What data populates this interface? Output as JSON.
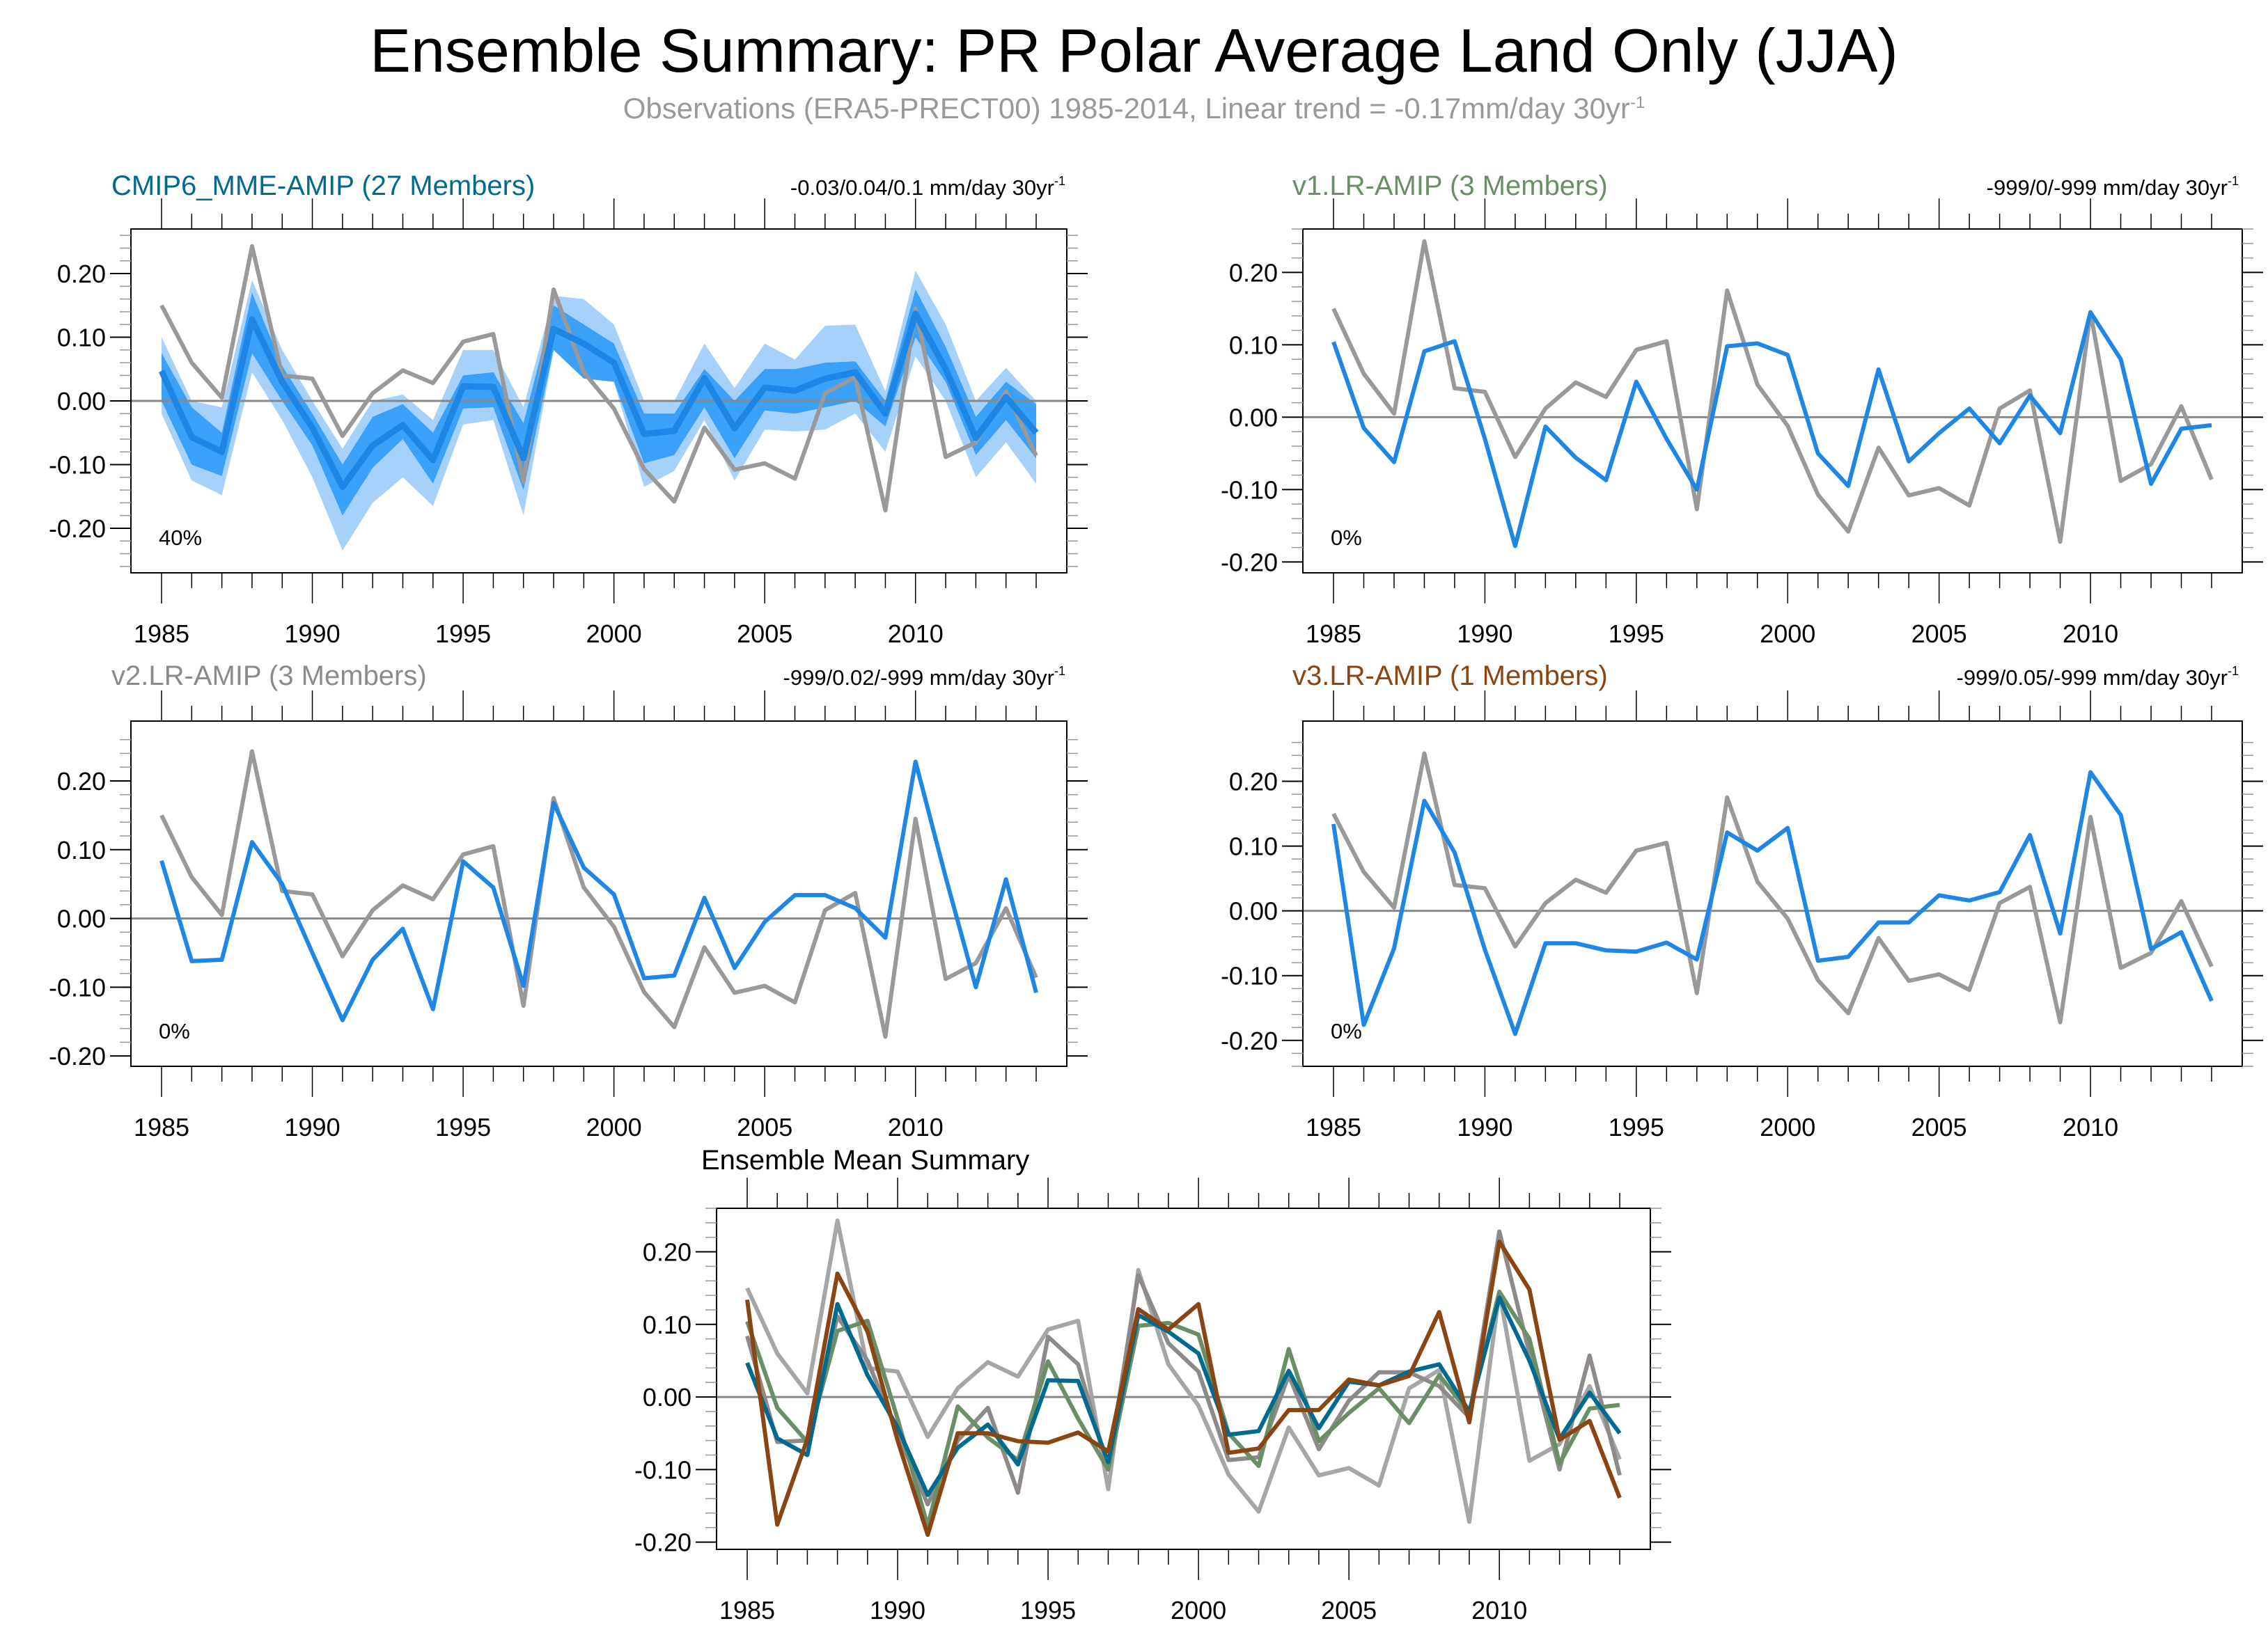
{
  "title": "Ensemble Summary: PR Polar Average Land Only (JJA)",
  "subtitle": "Observations (ERA5-PRECT00) 1985-2014, Linear trend = -0.17mm/day 30yr",
  "subtitle_sup": "-1",
  "chart_data": [
    {
      "type": "line",
      "title": "CMIP6_MME-AMIP (27 Members)",
      "title_color": "#006b8f",
      "trend_label": "-0.03/0.04/0.1 mm/day 30yr",
      "trend_sup": "-1",
      "percent_label": "40%",
      "x": [
        1985,
        1986,
        1987,
        1988,
        1989,
        1990,
        1991,
        1992,
        1993,
        1994,
        1995,
        1996,
        1997,
        1998,
        1999,
        2000,
        2001,
        2002,
        2003,
        2004,
        2005,
        2006,
        2007,
        2008,
        2009,
        2010,
        2011,
        2012,
        2013,
        2014
      ],
      "xticks": [
        1985,
        1990,
        1995,
        2000,
        2005,
        2010
      ],
      "yticks": [
        -0.2,
        -0.1,
        0.0,
        0.1,
        0.2
      ],
      "ytick_labels": [
        "-0.20",
        "-0.10",
        "0.00",
        "0.10",
        "0.20"
      ],
      "ylim": [
        -0.27,
        0.27
      ],
      "series": [
        {
          "name": "10-90% range",
          "kind": "band",
          "color": "#a6d1fb",
          "lower": [
            -0.02,
            -0.125,
            -0.148,
            0.045,
            -0.03,
            -0.12,
            -0.235,
            -0.16,
            -0.12,
            -0.165,
            -0.037,
            -0.03,
            -0.18,
            0.08,
            0.04,
            0.03,
            -0.135,
            -0.11,
            -0.03,
            -0.125,
            -0.045,
            -0.048,
            -0.045,
            -0.02,
            -0.08,
            0.07,
            0.0,
            -0.12,
            -0.065,
            -0.13
          ],
          "upper": [
            0.1,
            0.0,
            -0.01,
            0.19,
            0.08,
            0.0,
            -0.075,
            0.0,
            0.01,
            -0.03,
            0.08,
            0.08,
            -0.01,
            0.165,
            0.16,
            0.12,
            0.0,
            0.0,
            0.09,
            0.02,
            0.09,
            0.065,
            0.118,
            0.12,
            0.015,
            0.205,
            0.12,
            0.0,
            0.052,
            0.0
          ]
        },
        {
          "name": "25-75% range",
          "kind": "band",
          "color": "#3ba0f7",
          "lower": [
            0.0,
            -0.1,
            -0.118,
            0.075,
            0.0,
            -0.07,
            -0.18,
            -0.105,
            -0.06,
            -0.13,
            -0.012,
            -0.01,
            -0.14,
            0.08,
            0.035,
            0.03,
            -0.098,
            -0.085,
            -0.01,
            -0.09,
            -0.015,
            -0.02,
            -0.01,
            0.0,
            -0.04,
            0.1,
            0.03,
            -0.085,
            -0.03,
            -0.09
          ],
          "upper": [
            0.075,
            -0.01,
            -0.05,
            0.17,
            0.055,
            -0.02,
            -0.1,
            -0.025,
            -0.005,
            -0.05,
            0.04,
            0.045,
            -0.035,
            0.15,
            0.12,
            0.09,
            -0.02,
            -0.02,
            0.05,
            0.0,
            0.05,
            0.05,
            0.06,
            0.062,
            0.0,
            0.175,
            0.085,
            -0.025,
            0.03,
            -0.005
          ]
        },
        {
          "name": "Ensemble mean",
          "kind": "line",
          "color": "#1e87e5",
          "width": 9,
          "values": [
            0.047,
            -0.057,
            -0.08,
            0.128,
            0.03,
            -0.042,
            -0.135,
            -0.07,
            -0.038,
            -0.093,
            0.023,
            0.022,
            -0.09,
            0.113,
            0.09,
            0.06,
            -0.052,
            -0.047,
            0.036,
            -0.043,
            0.021,
            0.016,
            0.035,
            0.045,
            -0.02,
            0.137,
            0.05,
            -0.058,
            0.006,
            -0.05
          ]
        },
        {
          "name": "Observations",
          "kind": "line",
          "color": "#999999",
          "width": 6,
          "values": [
            0.15,
            0.06,
            0.005,
            0.243,
            0.04,
            0.035,
            -0.055,
            0.012,
            0.048,
            0.028,
            0.093,
            0.105,
            -0.127,
            0.175,
            0.045,
            -0.012,
            -0.107,
            -0.158,
            -0.042,
            -0.108,
            -0.098,
            -0.122,
            0.012,
            0.037,
            -0.172,
            0.145,
            -0.088,
            -0.065,
            0.015,
            -0.086
          ]
        }
      ]
    },
    {
      "type": "line",
      "title": "v1.LR-AMIP (3 Members)",
      "title_color": "#6a8f66",
      "trend_label": "-999/0/-999 mm/day 30yr",
      "trend_sup": "-1",
      "percent_label": "0%",
      "x": [
        1985,
        1986,
        1987,
        1988,
        1989,
        1990,
        1991,
        1992,
        1993,
        1994,
        1995,
        1996,
        1997,
        1998,
        1999,
        2000,
        2001,
        2002,
        2003,
        2004,
        2005,
        2006,
        2007,
        2008,
        2009,
        2010,
        2011,
        2012,
        2013,
        2014
      ],
      "xticks": [
        1985,
        1990,
        1995,
        2000,
        2005,
        2010
      ],
      "yticks": [
        -0.2,
        -0.1,
        0.0,
        0.1,
        0.2
      ],
      "ytick_labels": [
        "-0.20",
        "-0.10",
        "0.00",
        "0.10",
        "0.20"
      ],
      "ylim": [
        -0.215,
        0.26
      ],
      "series": [
        {
          "name": "Ensemble mean",
          "kind": "line",
          "color": "#1e87e5",
          "width": 6,
          "values": [
            0.104,
            -0.015,
            -0.062,
            0.091,
            0.105,
            -0.03,
            -0.178,
            -0.013,
            -0.056,
            -0.087,
            0.049,
            -0.03,
            -0.1,
            0.098,
            0.102,
            0.086,
            -0.05,
            -0.095,
            0.066,
            -0.061,
            -0.022,
            0.012,
            -0.036,
            0.03,
            -0.022,
            0.145,
            0.08,
            -0.092,
            -0.016,
            -0.011
          ]
        },
        {
          "name": "Observations",
          "kind": "line",
          "color": "#999999",
          "width": 6,
          "values": [
            0.15,
            0.06,
            0.005,
            0.243,
            0.04,
            0.035,
            -0.055,
            0.012,
            0.048,
            0.028,
            0.093,
            0.105,
            -0.127,
            0.175,
            0.045,
            -0.012,
            -0.107,
            -0.158,
            -0.042,
            -0.108,
            -0.098,
            -0.122,
            0.012,
            0.037,
            -0.172,
            0.145,
            -0.088,
            -0.065,
            0.015,
            -0.086
          ]
        }
      ]
    },
    {
      "type": "line",
      "title": "v2.LR-AMIP (3 Members)",
      "title_color": "#8f8a8a",
      "trend_label": "-999/0.02/-999 mm/day 30yr",
      "trend_sup": "-1",
      "percent_label": "0%",
      "x": [
        1985,
        1986,
        1987,
        1988,
        1989,
        1990,
        1991,
        1992,
        1993,
        1994,
        1995,
        1996,
        1997,
        1998,
        1999,
        2000,
        2001,
        2002,
        2003,
        2004,
        2005,
        2006,
        2007,
        2008,
        2009,
        2010,
        2011,
        2012,
        2013,
        2014
      ],
      "xticks": [
        1985,
        1990,
        1995,
        2000,
        2005,
        2010
      ],
      "yticks": [
        -0.2,
        -0.1,
        0.0,
        0.1,
        0.2
      ],
      "ytick_labels": [
        "-0.20",
        "-0.10",
        "0.00",
        "0.10",
        "0.20"
      ],
      "ylim": [
        -0.215,
        0.287
      ],
      "series": [
        {
          "name": "Ensemble mean",
          "kind": "line",
          "color": "#1e87e5",
          "width": 6,
          "values": [
            0.084,
            -0.062,
            -0.06,
            0.111,
            0.05,
            -0.05,
            -0.148,
            -0.06,
            -0.015,
            -0.132,
            0.083,
            0.045,
            -0.098,
            0.168,
            0.074,
            0.035,
            -0.087,
            -0.083,
            0.03,
            -0.072,
            -0.005,
            0.034,
            0.034,
            0.015,
            -0.028,
            0.228,
            0.06,
            -0.1,
            0.057,
            -0.108
          ]
        },
        {
          "name": "Observations",
          "kind": "line",
          "color": "#999999",
          "width": 6,
          "values": [
            0.15,
            0.06,
            0.005,
            0.243,
            0.04,
            0.035,
            -0.055,
            0.012,
            0.048,
            0.028,
            0.093,
            0.105,
            -0.127,
            0.175,
            0.045,
            -0.012,
            -0.107,
            -0.158,
            -0.042,
            -0.108,
            -0.098,
            -0.122,
            0.012,
            0.037,
            -0.172,
            0.145,
            -0.088,
            -0.065,
            0.015,
            -0.086
          ]
        }
      ]
    },
    {
      "type": "line",
      "title": "v3.LR-AMIP (1 Members)",
      "title_color": "#8b4513",
      "trend_label": "-999/0.05/-999 mm/day 30yr",
      "trend_sup": "-1",
      "percent_label": "0%",
      "x": [
        1985,
        1986,
        1987,
        1988,
        1989,
        1990,
        1991,
        1992,
        1993,
        1994,
        1995,
        1996,
        1997,
        1998,
        1999,
        2000,
        2001,
        2002,
        2003,
        2004,
        2005,
        2006,
        2007,
        2008,
        2009,
        2010,
        2011,
        2012,
        2013,
        2014
      ],
      "xticks": [
        1985,
        1990,
        1995,
        2000,
        2005,
        2010
      ],
      "yticks": [
        -0.2,
        -0.1,
        0.0,
        0.1,
        0.2
      ],
      "ytick_labels": [
        "-0.20",
        "-0.10",
        "0.00",
        "0.10",
        "0.20"
      ],
      "ylim": [
        -0.24,
        0.293
      ],
      "series": [
        {
          "name": "Ensemble mean",
          "kind": "line",
          "color": "#1e87e5",
          "width": 6,
          "values": [
            0.134,
            -0.176,
            -0.058,
            0.17,
            0.09,
            -0.06,
            -0.19,
            -0.05,
            -0.05,
            -0.061,
            -0.063,
            -0.049,
            -0.075,
            0.121,
            0.093,
            0.128,
            -0.077,
            -0.071,
            -0.018,
            -0.018,
            0.024,
            0.016,
            0.029,
            0.117,
            -0.035,
            0.214,
            0.148,
            -0.059,
            -0.033,
            -0.139
          ]
        },
        {
          "name": "Observations",
          "kind": "line",
          "color": "#999999",
          "width": 6,
          "values": [
            0.15,
            0.06,
            0.005,
            0.243,
            0.04,
            0.035,
            -0.055,
            0.012,
            0.048,
            0.028,
            0.093,
            0.105,
            -0.127,
            0.175,
            0.045,
            -0.012,
            -0.107,
            -0.158,
            -0.042,
            -0.108,
            -0.098,
            -0.122,
            0.012,
            0.037,
            -0.172,
            0.145,
            -0.088,
            -0.065,
            0.015,
            -0.086
          ]
        }
      ]
    },
    {
      "type": "line",
      "title": "Ensemble Mean Summary",
      "title_color": "#000000",
      "trend_label": "",
      "trend_sup": "",
      "percent_label": "",
      "x": [
        1985,
        1986,
        1987,
        1988,
        1989,
        1990,
        1991,
        1992,
        1993,
        1994,
        1995,
        1996,
        1997,
        1998,
        1999,
        2000,
        2001,
        2002,
        2003,
        2004,
        2005,
        2006,
        2007,
        2008,
        2009,
        2010,
        2011,
        2012,
        2013,
        2014
      ],
      "xticks": [
        1985,
        1990,
        1995,
        2000,
        2005,
        2010
      ],
      "yticks": [
        -0.2,
        -0.1,
        0.0,
        0.1,
        0.2
      ],
      "ytick_labels": [
        "-0.20",
        "-0.10",
        "0.00",
        "0.10",
        "0.20"
      ],
      "ylim": [
        -0.21,
        0.26
      ],
      "series": [
        {
          "name": "Observations",
          "kind": "line",
          "color": "#a6a6a6",
          "width": 6,
          "values": [
            0.15,
            0.06,
            0.005,
            0.243,
            0.04,
            0.035,
            -0.055,
            0.012,
            0.048,
            0.028,
            0.093,
            0.105,
            -0.127,
            0.175,
            0.045,
            -0.012,
            -0.107,
            -0.158,
            -0.042,
            -0.108,
            -0.098,
            -0.122,
            0.012,
            0.037,
            -0.172,
            0.145,
            -0.088,
            -0.065,
            0.015,
            -0.086
          ]
        },
        {
          "name": "v2.LR-AMIP",
          "kind": "line",
          "color": "#8f8a8a",
          "width": 6,
          "values": [
            0.084,
            -0.062,
            -0.06,
            0.111,
            0.05,
            -0.05,
            -0.148,
            -0.06,
            -0.015,
            -0.132,
            0.083,
            0.045,
            -0.098,
            0.168,
            0.074,
            0.035,
            -0.087,
            -0.083,
            0.03,
            -0.072,
            -0.005,
            0.034,
            0.034,
            0.015,
            -0.028,
            0.228,
            0.06,
            -0.1,
            0.057,
            -0.108
          ]
        },
        {
          "name": "v1.LR-AMIP",
          "kind": "line",
          "color": "#6a8f66",
          "width": 6,
          "values": [
            0.104,
            -0.015,
            -0.062,
            0.091,
            0.105,
            -0.03,
            -0.178,
            -0.013,
            -0.056,
            -0.087,
            0.049,
            -0.03,
            -0.1,
            0.098,
            0.102,
            0.086,
            -0.05,
            -0.095,
            0.066,
            -0.061,
            -0.022,
            0.012,
            -0.036,
            0.03,
            -0.022,
            0.145,
            0.08,
            -0.092,
            -0.016,
            -0.011
          ]
        },
        {
          "name": "CMIP6_MME-AMIP",
          "kind": "line",
          "color": "#006b8f",
          "width": 6,
          "values": [
            0.047,
            -0.057,
            -0.08,
            0.128,
            0.03,
            -0.042,
            -0.135,
            -0.07,
            -0.038,
            -0.093,
            0.023,
            0.022,
            -0.09,
            0.113,
            0.09,
            0.06,
            -0.052,
            -0.047,
            0.036,
            -0.043,
            0.021,
            0.016,
            0.035,
            0.045,
            -0.02,
            0.137,
            0.05,
            -0.058,
            0.006,
            -0.05
          ]
        },
        {
          "name": "v3.LR-AMIP",
          "kind": "line",
          "color": "#8b4513",
          "width": 6,
          "values": [
            0.134,
            -0.176,
            -0.058,
            0.17,
            0.09,
            -0.06,
            -0.19,
            -0.05,
            -0.05,
            -0.061,
            -0.063,
            -0.049,
            -0.075,
            0.121,
            0.093,
            0.128,
            -0.077,
            -0.071,
            -0.018,
            -0.018,
            0.024,
            0.016,
            0.029,
            0.117,
            -0.035,
            0.214,
            0.148,
            -0.059,
            -0.033,
            -0.139
          ]
        }
      ]
    }
  ]
}
